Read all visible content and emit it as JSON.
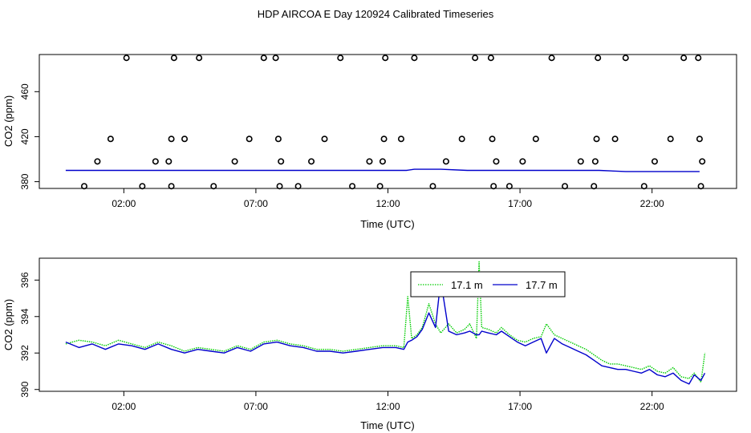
{
  "title": "HDP AIRCOA E  Day 120924  Calibrated Timeseries",
  "colors": {
    "green": "#00cc00",
    "blue": "#0000cc",
    "axis": "#000000"
  },
  "chart_data": [
    {
      "type": "scatter",
      "xlabel": "Time (UTC)",
      "ylabel": "CO2 (ppm)",
      "xlim_hours": [
        -1.2,
        25.2
      ],
      "ylim": [
        374,
        493
      ],
      "xtick_values": [
        2,
        7,
        12,
        17,
        22
      ],
      "xtick_labels": [
        "02:00",
        "07:00",
        "12:00",
        "17:00",
        "22:00"
      ],
      "ytick_values": [
        380,
        420,
        460
      ],
      "ytick_labels": [
        "380",
        "420",
        "460"
      ],
      "grid": false,
      "series": [
        {
          "color": "#0000cc",
          "style": "line",
          "x": [
            -0.2,
            1,
            2,
            3,
            4,
            5,
            6,
            7,
            8,
            9,
            10,
            11,
            12,
            12.7,
            13,
            13.5,
            14,
            15,
            15.5,
            16,
            17,
            18,
            19,
            20,
            21,
            22,
            23,
            23.8
          ],
          "y": [
            390,
            390,
            390,
            390,
            390,
            390,
            390,
            390,
            390,
            390,
            390,
            390,
            390,
            390,
            391,
            391,
            391,
            390,
            390,
            390,
            390,
            390,
            390,
            390,
            389,
            389,
            389,
            389
          ]
        },
        {
          "color": "#000000",
          "style": "points",
          "marker": "open-circle",
          "x": [
            0.5,
            1.0,
            1.5,
            2.1,
            2.7,
            3.2,
            3.7,
            3.8,
            3.8,
            3.9,
            4.3,
            4.85,
            5.4,
            6.2,
            6.75,
            7.3,
            7.75,
            7.85,
            7.9,
            7.95,
            8.6,
            9.1,
            9.6,
            10.2,
            10.65,
            11.3,
            11.7,
            11.8,
            11.85,
            11.9,
            12.5,
            13.0,
            13.7,
            14.2,
            14.8,
            15.3,
            15.9,
            15.95,
            16.0,
            16.1,
            16.6,
            17.1,
            17.6,
            18.2,
            18.7,
            19.3,
            19.8,
            19.85,
            19.9,
            19.95,
            20.6,
            21.0,
            21.7,
            22.1,
            22.7,
            23.2,
            23.75,
            23.8,
            23.85,
            23.9
          ],
          "y": [
            376,
            398,
            418,
            490,
            376,
            398,
            398,
            376,
            418,
            490,
            418,
            490,
            376,
            398,
            418,
            490,
            490,
            418,
            376,
            398,
            376,
            398,
            418,
            490,
            376,
            398,
            376,
            398,
            418,
            490,
            418,
            490,
            376,
            398,
            418,
            490,
            490,
            418,
            376,
            398,
            376,
            398,
            418,
            490,
            376,
            398,
            376,
            398,
            418,
            490,
            418,
            490,
            376,
            398,
            418,
            490,
            490,
            418,
            376,
            398
          ]
        }
      ]
    },
    {
      "type": "line",
      "xlabel": "Time (UTC)",
      "ylabel": "CO2 (ppm)",
      "xlim_hours": [
        -1.2,
        25.2
      ],
      "ylim": [
        389.9,
        397.2
      ],
      "xtick_values": [
        2,
        7,
        12,
        17,
        22
      ],
      "xtick_labels": [
        "02:00",
        "07:00",
        "12:00",
        "17:00",
        "22:00"
      ],
      "ytick_values": [
        390,
        392,
        394,
        396
      ],
      "ytick_labels": [
        "390",
        "392",
        "394",
        "396"
      ],
      "grid": false,
      "legend": {
        "position": "top-center",
        "entries": [
          "17.1 m",
          "17.7 m"
        ]
      },
      "series": [
        {
          "name": "17.1 m",
          "color": "#00cc00",
          "style": "dotted",
          "x": [
            -0.2,
            0.3,
            0.8,
            1.3,
            1.8,
            2.3,
            2.8,
            3.3,
            3.8,
            4.3,
            4.8,
            5.3,
            5.8,
            6.3,
            6.8,
            7.3,
            7.8,
            8.3,
            8.8,
            9.3,
            9.8,
            10.3,
            10.8,
            11.3,
            11.8,
            12.3,
            12.6,
            12.75,
            12.9,
            13.1,
            13.3,
            13.55,
            13.8,
            14.0,
            14.3,
            14.6,
            14.9,
            15.1,
            15.35,
            15.45,
            15.55,
            15.8,
            16.1,
            16.3,
            16.6,
            16.9,
            17.2,
            17.5,
            17.8,
            18.0,
            18.3,
            18.6,
            18.9,
            19.2,
            19.5,
            19.8,
            20.1,
            20.4,
            20.7,
            21.0,
            21.3,
            21.6,
            21.9,
            22.2,
            22.5,
            22.8,
            23.1,
            23.4,
            23.6,
            23.85,
            24.0
          ],
          "y": [
            392.5,
            392.7,
            392.6,
            392.4,
            392.7,
            392.5,
            392.3,
            392.6,
            392.4,
            392.1,
            392.3,
            392.2,
            392.1,
            392.4,
            392.2,
            392.6,
            392.7,
            392.5,
            392.4,
            392.2,
            392.2,
            392.1,
            392.2,
            392.3,
            392.4,
            392.4,
            392.3,
            395.1,
            392.8,
            393.0,
            393.4,
            394.7,
            393.6,
            393.1,
            393.6,
            393.1,
            393.3,
            393.6,
            392.8,
            397.0,
            393.4,
            393.3,
            393.1,
            393.4,
            393.0,
            392.7,
            392.6,
            392.8,
            392.9,
            393.6,
            393.0,
            392.8,
            392.6,
            392.4,
            392.2,
            391.9,
            391.6,
            391.4,
            391.4,
            391.3,
            391.2,
            391.1,
            391.3,
            391.0,
            390.9,
            391.2,
            390.7,
            390.6,
            390.9,
            390.4,
            392.0
          ]
        },
        {
          "name": "17.7 m",
          "color": "#0000cc",
          "style": "solid",
          "x": [
            -0.2,
            0.3,
            0.8,
            1.3,
            1.8,
            2.3,
            2.8,
            3.3,
            3.8,
            4.3,
            4.8,
            5.3,
            5.8,
            6.3,
            6.8,
            7.3,
            7.8,
            8.3,
            8.8,
            9.3,
            9.8,
            10.3,
            10.8,
            11.3,
            11.8,
            12.3,
            12.6,
            12.75,
            12.9,
            13.1,
            13.3,
            13.55,
            13.8,
            14.0,
            14.3,
            14.6,
            14.9,
            15.1,
            15.35,
            15.45,
            15.55,
            15.8,
            16.1,
            16.3,
            16.6,
            16.9,
            17.2,
            17.5,
            17.8,
            18.0,
            18.3,
            18.6,
            18.9,
            19.2,
            19.5,
            19.8,
            20.1,
            20.4,
            20.7,
            21.0,
            21.3,
            21.6,
            21.9,
            22.2,
            22.5,
            22.8,
            23.1,
            23.4,
            23.6,
            23.85,
            24.0
          ],
          "y": [
            392.6,
            392.3,
            392.5,
            392.2,
            392.5,
            392.4,
            392.2,
            392.5,
            392.2,
            392.0,
            392.2,
            392.1,
            392.0,
            392.3,
            392.1,
            392.5,
            392.6,
            392.4,
            392.3,
            392.1,
            392.1,
            392.0,
            392.1,
            392.2,
            392.3,
            392.3,
            392.2,
            392.6,
            392.7,
            392.9,
            393.3,
            394.2,
            393.4,
            396.0,
            393.2,
            393.0,
            393.1,
            393.2,
            393.0,
            393.0,
            393.2,
            393.1,
            393.0,
            393.2,
            392.9,
            392.6,
            392.4,
            392.6,
            392.8,
            392.0,
            392.8,
            392.5,
            392.3,
            392.1,
            391.9,
            391.6,
            391.3,
            391.2,
            391.1,
            391.1,
            391.0,
            390.9,
            391.1,
            390.8,
            390.7,
            390.9,
            390.5,
            390.3,
            390.8,
            390.5,
            390.9
          ]
        }
      ]
    }
  ]
}
